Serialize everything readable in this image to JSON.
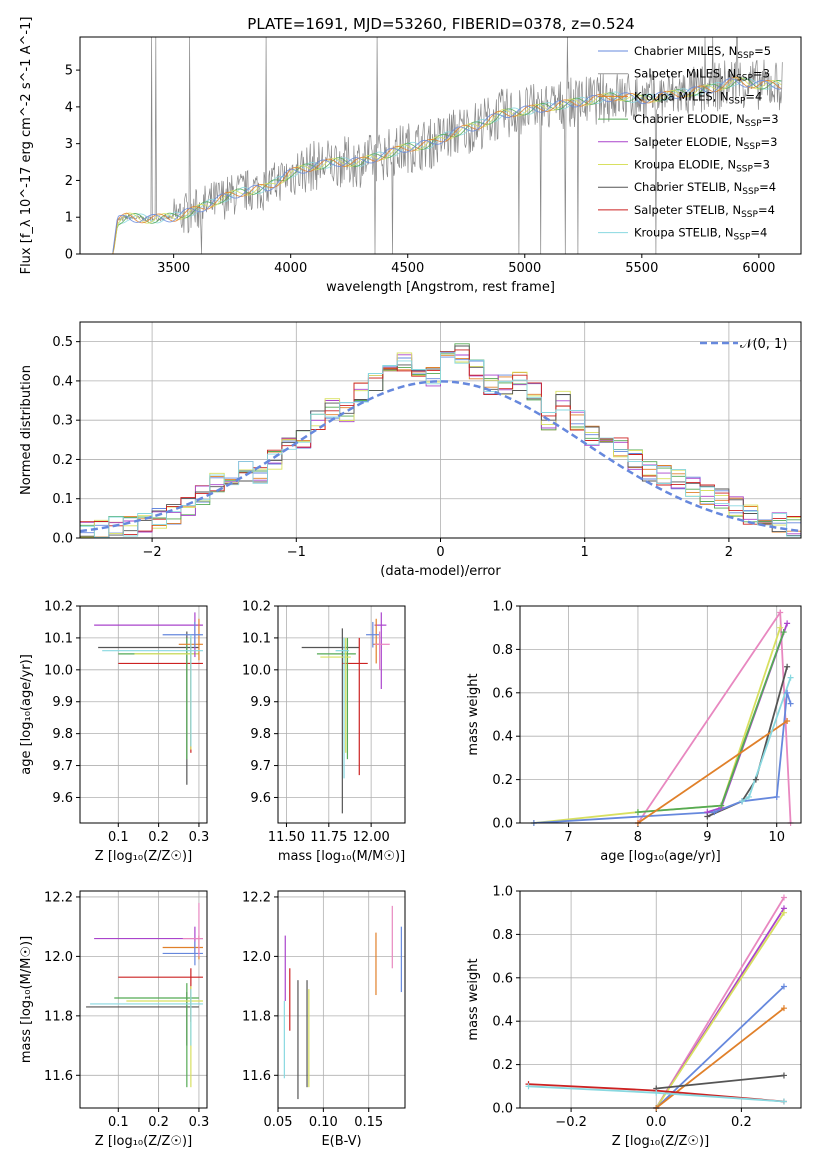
{
  "title": "PLATE=1691, MJD=53260, FIBERID=0378, z=0.524",
  "colors": {
    "Chabrier MILES": "#6688dd",
    "Salpeter MILES": "#999999",
    "Kroupa MILES": "#e0802a",
    "Chabrier ELODIE": "#55aa55",
    "Salpeter ELODIE": "#aa44cc",
    "Kroupa ELODIE": "#d8e060",
    "Chabrier STELIB": "#555555",
    "Salpeter STELIB": "#cc2222",
    "Kroupa STELIB": "#88d8e0",
    "pink": "#e888c0",
    "normal": "#6688dd"
  },
  "chart_data": [
    {
      "id": "spectrum",
      "type": "line",
      "xlabel": "wavelength [Angstrom, rest frame]",
      "ylabel": "Flux [f_λ 10^-17 erg cm^-2 s^-1 A^-1]",
      "xlim": [
        3100,
        6180
      ],
      "ylim": [
        0,
        5.9
      ],
      "xticks": [
        "3500",
        "4000",
        "4500",
        "5000",
        "5500",
        "6000"
      ],
      "yticks": [
        "0",
        "1",
        "2",
        "3",
        "4",
        "5"
      ],
      "grid": false,
      "legend_position": "right",
      "legend": [
        {
          "name": "Chabrier MILES",
          "nssp": "5"
        },
        {
          "name": "Salpeter MILES",
          "nssp": "3"
        },
        {
          "name": "Kroupa MILES",
          "nssp": "4"
        },
        {
          "name": "Chabrier ELODIE",
          "nssp": "3"
        },
        {
          "name": "Salpeter ELODIE",
          "nssp": "3"
        },
        {
          "name": "Kroupa ELODIE",
          "nssp": "3"
        },
        {
          "name": "Chabrier STELIB",
          "nssp": "4"
        },
        {
          "name": "Salpeter STELIB",
          "nssp": "4"
        },
        {
          "name": "Kroupa STELIB",
          "nssp": "4"
        }
      ],
      "model_curve": {
        "x": [
          3240,
          3260,
          3300,
          3400,
          3500,
          3600,
          3700,
          3800,
          3900,
          4000,
          4100,
          4200,
          4300,
          4400,
          4500,
          4600,
          4700,
          4800,
          4900,
          5000,
          5100,
          5200,
          5300,
          5400,
          5500,
          5600,
          5700,
          5800,
          5900,
          6000,
          6100
        ],
        "y": [
          0,
          0.9,
          1.0,
          0.95,
          1.0,
          1.2,
          1.5,
          1.7,
          1.8,
          2.2,
          2.4,
          2.5,
          2.5,
          2.7,
          2.9,
          3.0,
          3.3,
          3.5,
          3.8,
          3.9,
          4.0,
          4.1,
          4.2,
          4.3,
          4.2,
          4.3,
          4.4,
          4.5,
          4.7,
          4.6,
          4.6
        ]
      }
    },
    {
      "id": "residuals",
      "type": "bar",
      "xlabel": "(data-model)/error",
      "ylabel": "Normed distribution",
      "xlim": [
        -2.5,
        2.5
      ],
      "ylim": [
        0,
        0.55
      ],
      "xticks": [
        "−2",
        "−1",
        "0",
        "1",
        "2"
      ],
      "yticks": [
        "0.0",
        "0.1",
        "0.2",
        "0.3",
        "0.4",
        "0.5"
      ],
      "grid": true,
      "legend": "𝒩(0, 1)",
      "legend_position": "top-right",
      "bin_centers": [
        -2.45,
        -2.35,
        -2.25,
        -2.15,
        -2.05,
        -1.95,
        -1.85,
        -1.75,
        -1.65,
        -1.55,
        -1.45,
        -1.35,
        -1.25,
        -1.15,
        -1.05,
        -0.95,
        -0.85,
        -0.75,
        -0.65,
        -0.55,
        -0.45,
        -0.35,
        -0.25,
        -0.15,
        -0.05,
        0.05,
        0.15,
        0.25,
        0.35,
        0.45,
        0.55,
        0.65,
        0.75,
        0.85,
        0.95,
        1.05,
        1.15,
        1.25,
        1.35,
        1.45,
        1.55,
        1.65,
        1.75,
        1.85,
        1.95,
        2.05,
        2.15,
        2.25,
        2.35,
        2.45
      ],
      "histogram": [
        0.02,
        0.02,
        0.03,
        0.03,
        0.04,
        0.05,
        0.06,
        0.08,
        0.11,
        0.14,
        0.16,
        0.17,
        0.16,
        0.2,
        0.23,
        0.25,
        0.3,
        0.33,
        0.32,
        0.37,
        0.4,
        0.45,
        0.45,
        0.42,
        0.41,
        0.45,
        0.47,
        0.43,
        0.39,
        0.39,
        0.4,
        0.37,
        0.3,
        0.35,
        0.3,
        0.26,
        0.24,
        0.23,
        0.2,
        0.17,
        0.16,
        0.15,
        0.13,
        0.11,
        0.1,
        0.08,
        0.06,
        0.05,
        0.04,
        0.03
      ]
    },
    {
      "id": "age-Z",
      "type": "scatter",
      "xlabel": "Z [log₁₀(Z/Z☉)]",
      "ylabel": "age [log₁₀(age/yr)]",
      "xlim": [
        0.005,
        0.32
      ],
      "ylim": [
        9.52,
        10.2
      ],
      "xticks": [
        "0.1",
        "0.2",
        "0.3"
      ],
      "yticks": [
        "9.6",
        "9.7",
        "9.8",
        "9.9",
        "10.0",
        "10.1",
        "10.2"
      ],
      "grid": true,
      "series": [
        {
          "x": 0.27,
          "y": 10.07,
          "xerr": [
            0.22,
            0.03
          ],
          "yerr": [
            0.43,
            0.05
          ],
          "color": "#555555"
        },
        {
          "x": 0.28,
          "y": 10.02,
          "xerr": [
            0.18,
            0.03
          ],
          "yerr": [
            0.28,
            0.08
          ],
          "color": "#cc2222"
        },
        {
          "x": 0.27,
          "y": 10.05,
          "xerr": [
            0.17,
            0.03
          ],
          "yerr": [
            0.33,
            0.05
          ],
          "color": "#55aa55"
        },
        {
          "x": 0.28,
          "y": 10.05,
          "xerr": [
            0.14,
            0.02
          ],
          "yerr": [
            0.3,
            0.05
          ],
          "color": "#d8e060"
        },
        {
          "x": 0.29,
          "y": 10.14,
          "xerr": [
            0.25,
            0.02
          ],
          "yerr": [
            0.1,
            0.04
          ],
          "color": "#aa44cc"
        },
        {
          "x": 0.3,
          "y": 10.08,
          "xerr": [
            0.05,
            0.01
          ],
          "yerr": [
            0.05,
            0.08
          ],
          "color": "#e0802a"
        },
        {
          "x": 0.29,
          "y": 10.11,
          "xerr": [
            0.08,
            0.02
          ],
          "yerr": [
            0.04,
            0.04
          ],
          "color": "#6688dd"
        },
        {
          "x": 0.28,
          "y": 10.06,
          "xerr": [
            0.22,
            0.03
          ],
          "yerr": [
            0.3,
            0.05
          ],
          "color": "#88d8e0"
        }
      ]
    },
    {
      "id": "age-mass",
      "type": "scatter",
      "xlabel": "mass [log₁₀(M/M☉)]",
      "ylabel": "",
      "xlim": [
        11.45,
        12.2
      ],
      "ylim": [
        9.52,
        10.2
      ],
      "xticks": [
        "11.50",
        "11.75",
        "12.00"
      ],
      "yticks": [
        "9.6",
        "9.7",
        "9.8",
        "9.9",
        "10.0",
        "10.1",
        "10.2"
      ],
      "grid": true,
      "series": [
        {
          "x": 11.83,
          "y": 10.07,
          "xerr": [
            0.24,
            0.1
          ],
          "yerr": [
            0.52,
            0.06
          ],
          "color": "#555555"
        },
        {
          "x": 11.93,
          "y": 10.02,
          "xerr": [
            0.1,
            0.05
          ],
          "yerr": [
            0.35,
            0.08
          ],
          "color": "#cc2222"
        },
        {
          "x": 11.86,
          "y": 10.05,
          "xerr": [
            0.18,
            0.05
          ],
          "yerr": [
            0.33,
            0.05
          ],
          "color": "#55aa55"
        },
        {
          "x": 11.85,
          "y": 10.04,
          "xerr": [
            0.15,
            0.03
          ],
          "yerr": [
            0.3,
            0.06
          ],
          "color": "#d8e060"
        },
        {
          "x": 12.06,
          "y": 10.14,
          "xerr": [
            0.04,
            0.03
          ],
          "yerr": [
            0.2,
            0.04
          ],
          "color": "#aa44cc"
        },
        {
          "x": 12.03,
          "y": 10.08,
          "xerr": [
            0.02,
            0.02
          ],
          "yerr": [
            0.06,
            0.08
          ],
          "color": "#e0802a"
        },
        {
          "x": 12.01,
          "y": 10.11,
          "xerr": [
            0.04,
            0.04
          ],
          "yerr": [
            0.04,
            0.04
          ],
          "color": "#6688dd"
        },
        {
          "x": 12.05,
          "y": 10.08,
          "xerr": [
            0.03,
            0.06
          ],
          "yerr": [
            0.08,
            0.04
          ],
          "color": "#e888c0"
        },
        {
          "x": 11.84,
          "y": 10.06,
          "xerr": [
            0.05,
            0.03
          ],
          "yerr": [
            0.4,
            0.04
          ],
          "color": "#88d8e0"
        }
      ]
    },
    {
      "id": "mass-weight-age",
      "type": "line",
      "xlabel": "age [log₁₀(age/yr)]",
      "ylabel": "mass weight",
      "xlim": [
        6.3,
        10.35
      ],
      "ylim": [
        0,
        1.0
      ],
      "xticks": [
        "7",
        "8",
        "9",
        "10"
      ],
      "yticks": [
        "0.0",
        "0.2",
        "0.4",
        "0.6",
        "0.8",
        "1.0"
      ],
      "grid": true,
      "series": [
        {
          "color": "#e888c0",
          "x": [
            8.0,
            10.05,
            10.2
          ],
          "y": [
            0.0,
            0.97,
            0.0
          ]
        },
        {
          "color": "#aa44cc",
          "x": [
            9.0,
            9.2,
            10.15
          ],
          "y": [
            0.05,
            0.07,
            0.92
          ]
        },
        {
          "color": "#d8e060",
          "x": [
            6.5,
            8.0,
            9.2,
            10.05
          ],
          "y": [
            0.0,
            0.05,
            0.08,
            0.9
          ]
        },
        {
          "color": "#55aa55",
          "x": [
            8.0,
            9.2,
            10.1
          ],
          "y": [
            0.05,
            0.08,
            0.88
          ]
        },
        {
          "color": "#555555",
          "x": [
            9.0,
            9.5,
            9.7,
            10.15
          ],
          "y": [
            0.03,
            0.1,
            0.2,
            0.72
          ]
        },
        {
          "color": "#6688dd",
          "x": [
            6.5,
            9.1,
            9.5,
            10.0,
            10.15,
            10.2
          ],
          "y": [
            0.0,
            0.05,
            0.1,
            0.12,
            0.6,
            0.55
          ]
        },
        {
          "color": "#e0802a",
          "x": [
            8.0,
            10.15
          ],
          "y": [
            0.0,
            0.47
          ]
        },
        {
          "color": "#88d8e0",
          "x": [
            9.5,
            9.6,
            10.2
          ],
          "y": [
            0.1,
            0.12,
            0.67
          ]
        }
      ]
    },
    {
      "id": "mass-Z",
      "type": "scatter",
      "xlabel": "Z [log₁₀(Z/Z☉)]",
      "ylabel": "mass [log₁₀(M/M☉)]",
      "xlim": [
        0.005,
        0.32
      ],
      "ylim": [
        11.49,
        12.22
      ],
      "xticks": [
        "0.1",
        "0.2",
        "0.3"
      ],
      "yticks": [
        "11.6",
        "11.8",
        "12.0",
        "12.2"
      ],
      "grid": true,
      "series": [
        {
          "x": 0.27,
          "y": 11.83,
          "xerr": [
            0.25,
            0.03
          ],
          "yerr": [
            0.13,
            0.05
          ],
          "color": "#555555"
        },
        {
          "x": 0.28,
          "y": 11.93,
          "xerr": [
            0.18,
            0.03
          ],
          "yerr": [
            0.15,
            0.03
          ],
          "color": "#cc2222"
        },
        {
          "x": 0.27,
          "y": 11.86,
          "xerr": [
            0.18,
            0.03
          ],
          "yerr": [
            0.3,
            0.05
          ],
          "color": "#55aa55"
        },
        {
          "x": 0.28,
          "y": 11.85,
          "xerr": [
            0.16,
            0.03
          ],
          "yerr": [
            0.29,
            0.05
          ],
          "color": "#d8e060"
        },
        {
          "x": 0.29,
          "y": 12.06,
          "xerr": [
            0.25,
            0.02
          ],
          "yerr": [
            0.05,
            0.04
          ],
          "color": "#aa44cc"
        },
        {
          "x": 0.3,
          "y": 12.03,
          "xerr": [
            0.09,
            0.01
          ],
          "yerr": [
            0.04,
            0.04
          ],
          "color": "#e0802a"
        },
        {
          "x": 0.29,
          "y": 12.01,
          "xerr": [
            0.08,
            0.02
          ],
          "yerr": [
            0.04,
            0.04
          ],
          "color": "#6688dd"
        },
        {
          "x": 0.3,
          "y": 12.06,
          "xerr": [
            0.04,
            0.01
          ],
          "yerr": [
            0.06,
            0.12
          ],
          "color": "#e888c0"
        },
        {
          "x": 0.28,
          "y": 11.84,
          "xerr": [
            0.25,
            0.03
          ],
          "yerr": [
            0.14,
            0.05
          ],
          "color": "#88d8e0"
        }
      ]
    },
    {
      "id": "mass-ebv",
      "type": "scatter",
      "xlabel": "E(B-V)",
      "ylabel": "",
      "xlim": [
        0.05,
        0.19
      ],
      "ylim": [
        11.49,
        12.22
      ],
      "xticks": [
        "0.05",
        "0.10",
        "0.15"
      ],
      "yticks": [
        "11.6",
        "11.8",
        "12.0",
        "12.2"
      ],
      "grid": true,
      "series": [
        {
          "x": 0.058,
          "y": 11.95,
          "yerr": [
            0.1,
            0.12
          ],
          "color": "#aa44cc"
        },
        {
          "x": 0.063,
          "y": 11.85,
          "yerr": [
            0.1,
            0.11
          ],
          "color": "#cc2222"
        },
        {
          "x": 0.072,
          "y": 11.73,
          "yerr": [
            0.21,
            0.19
          ],
          "color": "#555555"
        },
        {
          "x": 0.082,
          "y": 11.77,
          "yerr": [
            0.21,
            0.15
          ],
          "color": "#555555"
        },
        {
          "x": 0.084,
          "y": 11.73,
          "yerr": [
            0.17,
            0.16
          ],
          "color": "#d8e060"
        },
        {
          "x": 0.057,
          "y": 11.7,
          "yerr": [
            0.11,
            0.15
          ],
          "color": "#88d8e0"
        },
        {
          "x": 0.158,
          "y": 11.97,
          "yerr": [
            0.1,
            0.11
          ],
          "color": "#e0802a"
        },
        {
          "x": 0.176,
          "y": 12.06,
          "yerr": [
            0.1,
            0.11
          ],
          "color": "#e888c0"
        },
        {
          "x": 0.186,
          "y": 11.98,
          "yerr": [
            0.1,
            0.12
          ],
          "color": "#6688dd"
        }
      ]
    },
    {
      "id": "mass-weight-Z",
      "type": "line",
      "xlabel": "Z [log₁₀(Z/Z☉)]",
      "ylabel": "mass weight",
      "xlim": [
        -0.32,
        0.34
      ],
      "ylim": [
        0,
        1.0
      ],
      "xticks": [
        "−0.2",
        "0.0",
        "0.2"
      ],
      "yticks": [
        "0.0",
        "0.2",
        "0.4",
        "0.6",
        "0.8",
        "1.0"
      ],
      "grid": true,
      "series": [
        {
          "color": "#e888c0",
          "x": [
            0.0,
            0.3
          ],
          "y": [
            0.0,
            0.97
          ]
        },
        {
          "color": "#aa44cc",
          "x": [
            0.0,
            0.3
          ],
          "y": [
            0.0,
            0.92
          ]
        },
        {
          "color": "#d8e060",
          "x": [
            0.0,
            0.3
          ],
          "y": [
            0.0,
            0.9
          ]
        },
        {
          "color": "#6688dd",
          "x": [
            0.0,
            0.3
          ],
          "y": [
            0.0,
            0.56
          ]
        },
        {
          "color": "#e0802a",
          "x": [
            0.0,
            0.3
          ],
          "y": [
            0.0,
            0.46
          ]
        },
        {
          "color": "#cc2222",
          "x": [
            -0.3,
            0.0,
            0.3
          ],
          "y": [
            0.11,
            0.08,
            0.03
          ]
        },
        {
          "color": "#555555",
          "x": [
            0.0,
            0.3
          ],
          "y": [
            0.09,
            0.15
          ]
        },
        {
          "color": "#88d8e0",
          "x": [
            -0.3,
            0.0,
            0.3
          ],
          "y": [
            0.1,
            0.07,
            0.03
          ]
        }
      ]
    }
  ]
}
